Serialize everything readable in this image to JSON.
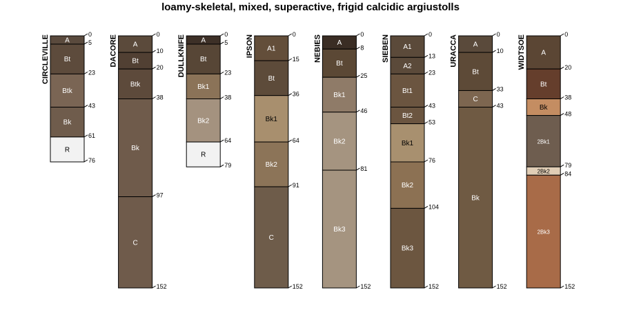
{
  "chart_data": {
    "type": "soil-profile-sketch",
    "title": "loamy-skeletal, mixed, superactive, frigid calcidic argiustolls",
    "depth_axis": {
      "max_depth": 152,
      "units": "cm"
    },
    "profiles": [
      {
        "name": "CIRCLEVILLE",
        "horizons": [
          {
            "name": "A",
            "top": 0,
            "bottom": 5,
            "color": "#5a4a3d",
            "label_color": "#ffffff"
          },
          {
            "name": "Bt",
            "top": 5,
            "bottom": 23,
            "color": "#5d4b3c",
            "label_color": "#ffffff"
          },
          {
            "name": "Btk",
            "top": 23,
            "bottom": 43,
            "color": "#7a6554",
            "label_color": "#ffffff"
          },
          {
            "name": "Bk",
            "top": 43,
            "bottom": 61,
            "color": "#6f5c4c",
            "label_color": "#ffffff"
          },
          {
            "name": "R",
            "top": 61,
            "bottom": 76,
            "color": "#f2f2f2",
            "label_color": "#000000"
          }
        ]
      },
      {
        "name": "DACORE",
        "horizons": [
          {
            "name": "A",
            "top": 0,
            "bottom": 10,
            "color": "#5b4a3b",
            "label_color": "#ffffff"
          },
          {
            "name": "Bt",
            "top": 10,
            "bottom": 20,
            "color": "#514033",
            "label_color": "#ffffff"
          },
          {
            "name": "Btk",
            "top": 20,
            "bottom": 38,
            "color": "#5d4a3b",
            "label_color": "#ffffff"
          },
          {
            "name": "Bk",
            "top": 38,
            "bottom": 97,
            "color": "#6f5b4b",
            "label_color": "#ffffff"
          },
          {
            "name": "C",
            "top": 97,
            "bottom": 152,
            "color": "#6f5b4b",
            "label_color": "#ffffff"
          }
        ]
      },
      {
        "name": "DULLKNIFE",
        "horizons": [
          {
            "name": "A",
            "top": 0,
            "bottom": 5,
            "color": "#3d3027",
            "label_color": "#ffffff"
          },
          {
            "name": "Bt",
            "top": 5,
            "bottom": 23,
            "color": "#574636",
            "label_color": "#ffffff"
          },
          {
            "name": "Bk1",
            "top": 23,
            "bottom": 38,
            "color": "#8b7358",
            "label_color": "#ffffff"
          },
          {
            "name": "Bk2",
            "top": 38,
            "bottom": 64,
            "color": "#a4927f",
            "label_color": "#ffffff"
          },
          {
            "name": "R",
            "top": 64,
            "bottom": 79,
            "color": "#f2f2f2",
            "label_color": "#000000"
          }
        ]
      },
      {
        "name": "IPSON",
        "horizons": [
          {
            "name": "A1",
            "top": 0,
            "bottom": 15,
            "color": "#634e3a",
            "label_color": "#ffffff"
          },
          {
            "name": "Bt",
            "top": 15,
            "bottom": 36,
            "color": "#5d4b3a",
            "label_color": "#ffffff"
          },
          {
            "name": "Bk1",
            "top": 36,
            "bottom": 64,
            "color": "#a88f6e",
            "label_color": "#000000"
          },
          {
            "name": "Bk2",
            "top": 64,
            "bottom": 91,
            "color": "#8c7458",
            "label_color": "#ffffff"
          },
          {
            "name": "C",
            "top": 91,
            "bottom": 152,
            "color": "#6e5c4a",
            "label_color": "#ffffff"
          }
        ]
      },
      {
        "name": "NEBIES",
        "horizons": [
          {
            "name": "A",
            "top": 0,
            "bottom": 8,
            "color": "#3a2d24",
            "label_color": "#ffffff"
          },
          {
            "name": "Bt",
            "top": 8,
            "bottom": 25,
            "color": "#5b4835",
            "label_color": "#ffffff"
          },
          {
            "name": "Bk1",
            "top": 25,
            "bottom": 46,
            "color": "#8f7b68",
            "label_color": "#ffffff"
          },
          {
            "name": "Bk2",
            "top": 46,
            "bottom": 81,
            "color": "#a59480",
            "label_color": "#ffffff"
          },
          {
            "name": "Bk3",
            "top": 81,
            "bottom": 152,
            "color": "#a59480",
            "label_color": "#ffffff"
          }
        ]
      },
      {
        "name": "SIEBEN",
        "horizons": [
          {
            "name": "A1",
            "top": 0,
            "bottom": 13,
            "color": "#5b4a3a",
            "label_color": "#ffffff"
          },
          {
            "name": "A2",
            "top": 13,
            "bottom": 23,
            "color": "#5b4a3a",
            "label_color": "#ffffff"
          },
          {
            "name": "Bt1",
            "top": 23,
            "bottom": 43,
            "color": "#6b5540",
            "label_color": "#ffffff"
          },
          {
            "name": "Bt2",
            "top": 43,
            "bottom": 53,
            "color": "#6b5540",
            "label_color": "#ffffff"
          },
          {
            "name": "Bk1",
            "top": 53,
            "bottom": 76,
            "color": "#a8906f",
            "label_color": "#000000"
          },
          {
            "name": "Bk2",
            "top": 76,
            "bottom": 104,
            "color": "#8c7153",
            "label_color": "#ffffff"
          },
          {
            "name": "Bk3",
            "top": 104,
            "bottom": 152,
            "color": "#6c5640",
            "label_color": "#ffffff"
          }
        ]
      },
      {
        "name": "URACCA",
        "horizons": [
          {
            "name": "A",
            "top": 0,
            "bottom": 10,
            "color": "#5a4a3b",
            "label_color": "#ffffff"
          },
          {
            "name": "Bt",
            "top": 10,
            "bottom": 33,
            "color": "#5d4a37",
            "label_color": "#ffffff"
          },
          {
            "name": "C",
            "top": 33,
            "bottom": 43,
            "color": "#7d6650",
            "label_color": "#ffffff"
          },
          {
            "name": "Bk",
            "top": 43,
            "bottom": 152,
            "color": "#6f5a43",
            "label_color": "#ffffff"
          }
        ]
      },
      {
        "name": "WIDTSOE",
        "horizons": [
          {
            "name": "A",
            "top": 0,
            "bottom": 20,
            "color": "#5b4634",
            "label_color": "#ffffff"
          },
          {
            "name": "Bt",
            "top": 20,
            "bottom": 38,
            "color": "#653e2c",
            "label_color": "#ffffff"
          },
          {
            "name": "Bk",
            "top": 38,
            "bottom": 48,
            "color": "#c48d62",
            "label_color": "#000000"
          },
          {
            "name": "2Bk1",
            "top": 48,
            "bottom": 79,
            "color": "#6e5d4f",
            "label_color": "#ffffff"
          },
          {
            "name": "2Bk2",
            "top": 79,
            "bottom": 84,
            "color": "#e0cdb5",
            "label_color": "#000000"
          },
          {
            "name": "2Bk3",
            "top": 84,
            "bottom": 152,
            "color": "#a86b48",
            "label_color": "#ffffff"
          }
        ]
      }
    ]
  }
}
